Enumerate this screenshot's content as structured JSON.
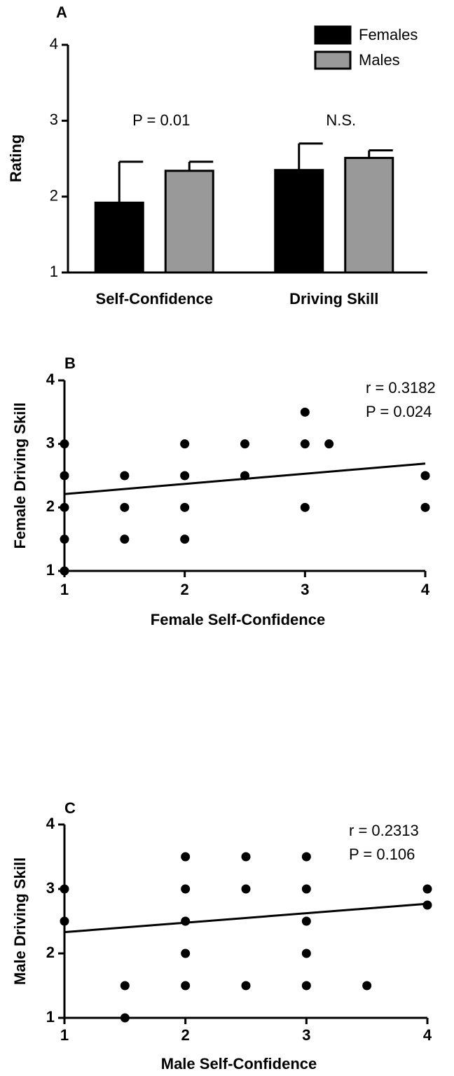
{
  "chart_data": [
    {
      "type": "bar",
      "label": "A",
      "ylabel": "Rating",
      "categories": [
        "Self-Confidence",
        "Driving Skill"
      ],
      "series": [
        {
          "name": "Females",
          "color": "#000000",
          "values": [
            1.92,
            2.35
          ],
          "errors": [
            0.54,
            0.35
          ]
        },
        {
          "name": "Males",
          "color": "#999999",
          "values": [
            2.34,
            2.51
          ],
          "errors": [
            0.12,
            0.1
          ]
        }
      ],
      "annotations": [
        "P = 0.01",
        "N.S."
      ],
      "ylim": [
        1,
        4
      ],
      "yticks": [
        1,
        2,
        3,
        4
      ],
      "legend": "top-right"
    },
    {
      "type": "scatter",
      "label": "B",
      "xlabel": "Female Self-Confidence",
      "ylabel": "Female Driving Skill",
      "x": [
        1,
        1,
        1,
        1,
        1,
        1.5,
        1.5,
        1.5,
        2,
        2,
        2,
        2,
        2.5,
        2.5,
        3,
        3,
        3.2,
        3,
        4,
        4
      ],
      "y": [
        3,
        2.5,
        2,
        1.5,
        1,
        2.5,
        2,
        1.5,
        3,
        2.5,
        2,
        1.5,
        3,
        2.5,
        3.5,
        3,
        3,
        2,
        2.5,
        2
      ],
      "fit": {
        "x": [
          1,
          4
        ],
        "y": [
          2.21,
          2.69
        ]
      },
      "annotations": [
        "r = 0.3182",
        "P = 0.024"
      ],
      "xlim": [
        1,
        4
      ],
      "xticks": [
        1,
        2,
        3,
        4
      ],
      "ylim": [
        1,
        4
      ],
      "yticks": [
        1,
        2,
        3,
        4
      ],
      "color": "#000000"
    },
    {
      "type": "scatter",
      "label": "C",
      "xlabel": "Male Self-Confidence",
      "ylabel": "Male Driving Skill",
      "x": [
        1,
        1,
        1.5,
        1.5,
        2,
        2,
        2,
        2,
        2,
        2.5,
        2.5,
        2.5,
        3,
        3,
        3,
        3,
        3,
        3.5,
        4,
        4
      ],
      "y": [
        3,
        2.5,
        1.5,
        1,
        3.5,
        3,
        2.5,
        2,
        1.5,
        3.5,
        3,
        1.5,
        3.5,
        3,
        2.5,
        2,
        1.5,
        1.5,
        3,
        2.75
      ],
      "fit": {
        "x": [
          1,
          4
        ],
        "y": [
          2.33,
          2.77
        ]
      },
      "annotations": [
        "r = 0.2313",
        "P = 0.106"
      ],
      "xlim": [
        1,
        4
      ],
      "xticks": [
        1,
        2,
        3,
        4
      ],
      "ylim": [
        1,
        4
      ],
      "yticks": [
        1,
        2,
        3,
        4
      ],
      "color": "#000000"
    }
  ]
}
